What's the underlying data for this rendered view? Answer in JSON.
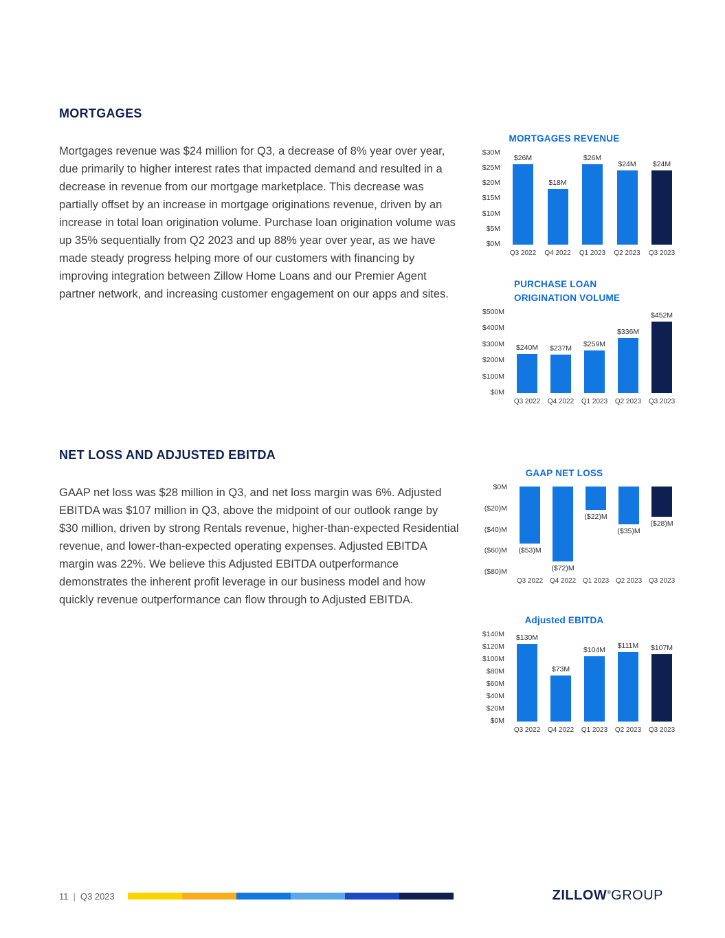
{
  "sections": [
    {
      "heading": "MORTGAGES",
      "body": "Mortgages revenue was $24 million for Q3, a decrease of 8% year over year, due primarily to higher interest rates that impacted demand and resulted in a decrease in revenue from our mortgage marketplace. This decrease was partially offset by an increase in mortgage originations revenue, driven by an increase in total loan origination volume. Purchase loan origination volume was up 35% sequentially from Q2 2023 and up 88% year over year, as we have made steady progress helping more of our customers with financing by improving integration between Zillow Home Loans and our Premier Agent partner network, and increasing customer engagement on our apps and sites."
    },
    {
      "heading": "NET LOSS AND ADJUSTED EBITDA",
      "body": "GAAP net loss was $28 million in Q3, and net loss margin was 6%. Adjusted EBITDA was $107 million in Q3, above the midpoint of our outlook range by $30 million, driven by strong Rentals revenue, higher-than-expected Residential revenue, and lower-than-expected operating expenses. Adjusted EBITDA margin was 22%. We believe this Adjusted EBITDA outperformance demonstrates the inherent profit leverage in our business model and how quickly revenue outperformance can flow through to Adjusted EBITDA."
    }
  ],
  "chart_data": [
    {
      "type": "bar",
      "title": "MORTGAGES REVENUE",
      "categories": [
        "Q3 2022",
        "Q4 2022",
        "Q1 2023",
        "Q2 2023",
        "Q3 2023"
      ],
      "values": [
        26,
        18,
        26,
        24,
        24
      ],
      "value_labels": [
        "$26M",
        "$18M",
        "$26M",
        "$24M",
        "$24M"
      ],
      "axis_max": 30,
      "yticks": [
        "$30M",
        "$25M",
        "$20M",
        "$15M",
        "$10M",
        "$5M",
        "$0M"
      ],
      "ylim": [
        0,
        30
      ],
      "direction": "up",
      "grid": false,
      "legend_position": "none",
      "highlight_last_bar": true,
      "bar_color": "#1277E1",
      "highlight_color": "#0D2050"
    },
    {
      "type": "bar",
      "title": "PURCHASE LOAN ORIGINATION VOLUME",
      "title_lines": [
        "PURCHASE LOAN",
        "ORIGINATION VOLUME"
      ],
      "categories": [
        "Q3 2022",
        "Q4 2022",
        "Q1 2023",
        "Q2 2023",
        "Q3 2023"
      ],
      "values": [
        240,
        237,
        259,
        336,
        452
      ],
      "value_labels": [
        "$240M",
        "$237M",
        "$259M",
        "$336M",
        "$452M"
      ],
      "axis_max": 500,
      "yticks": [
        "$500M",
        "$400M",
        "$300M",
        "$200M",
        "$100M",
        "$0M"
      ],
      "ylim": [
        0,
        500
      ],
      "direction": "up",
      "grid": false,
      "legend_position": "none",
      "highlight_last_bar": true,
      "bar_color": "#1277E1",
      "highlight_color": "#0D2050"
    },
    {
      "type": "bar",
      "title": "GAAP NET LOSS",
      "categories": [
        "Q3 2022",
        "Q4 2022",
        "Q1 2023",
        "Q2 2023",
        "Q3 2023"
      ],
      "values": [
        -53,
        -72,
        -22,
        -35,
        -28
      ],
      "value_labels": [
        "($53)M",
        "($72)M",
        "($22)M",
        "($35)M",
        "($28)M"
      ],
      "axis_max": 80,
      "yticks": [
        "$0M",
        "($20)M",
        "($40)M",
        "($60)M",
        "($80)M"
      ],
      "ylim": [
        -80,
        0
      ],
      "direction": "down",
      "grid": false,
      "legend_position": "none",
      "highlight_last_bar": true,
      "bar_color": "#1277E1",
      "highlight_color": "#0D2050"
    },
    {
      "type": "bar",
      "title": "Adjusted EBITDA",
      "categories": [
        "Q3 2022",
        "Q4 2022",
        "Q1 2023",
        "Q2 2023",
        "Q3 2023"
      ],
      "values": [
        130,
        73,
        104,
        111,
        107
      ],
      "value_labels": [
        "$130M",
        "$73M",
        "$104M",
        "$111M",
        "$107M"
      ],
      "axis_max": 140,
      "yticks": [
        "$140M",
        "$120M",
        "$100M",
        "$80M",
        "$60M",
        "$40M",
        "$20M",
        "$0M"
      ],
      "ylim": [
        0,
        140
      ],
      "direction": "up",
      "grid": false,
      "legend_position": "none",
      "highlight_last_bar": true,
      "bar_color": "#1277E1",
      "highlight_color": "#0D2050"
    }
  ],
  "footer": {
    "page_number": "11",
    "separator": "|",
    "quarter": "Q3 2023",
    "bar_colors": [
      "#FFD200",
      "#F9AE1B",
      "#1277E1",
      "#5BA8E8",
      "#1B4AC2",
      "#0D2050"
    ],
    "brand_bold": "ZILLOW",
    "brand_mark": "®",
    "brand_light": "GROUP"
  },
  "colors": {
    "heading_navy": "#0D2050",
    "chart_title_blue": "#0A6AE0",
    "bar_blue": "#1277E1",
    "bar_navy": "#0D2050"
  }
}
